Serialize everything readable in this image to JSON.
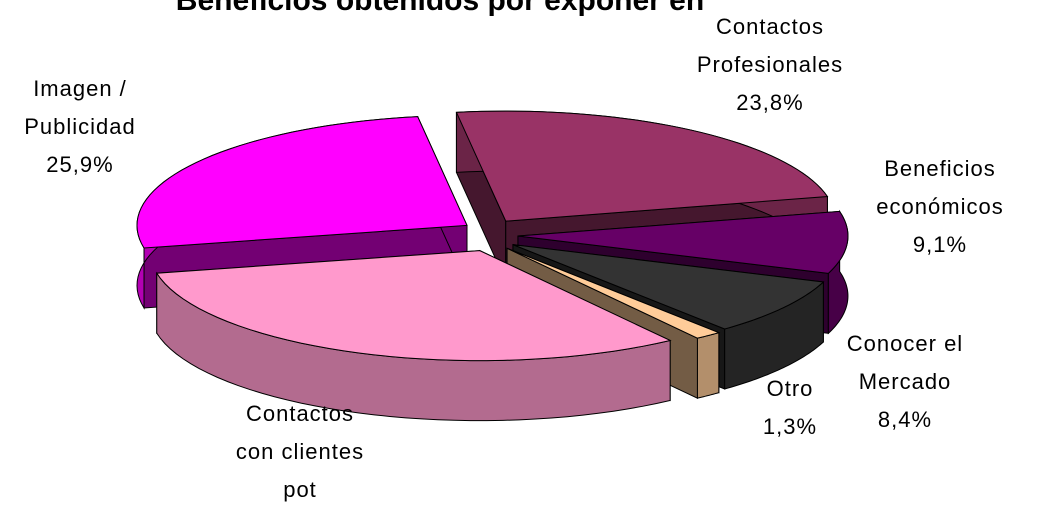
{
  "chart_data": {
    "type": "pie3d",
    "title": "Beneficios obtenidos por exponer en",
    "categories": [
      "Contactos Profesionales",
      "Beneficios económicos",
      "Conocer el Mercado",
      "Otro",
      "Contactos con clientes pot",
      "Imagen / Publicidad"
    ],
    "values": [
      23.8,
      9.1,
      8.4,
      1.3,
      31.5,
      25.9
    ],
    "value_labels": [
      "23,8%",
      "9,1%",
      "8,4%",
      "1,3%",
      null,
      "25,9%"
    ],
    "colors": [
      "#993366",
      "#660066",
      "#333333",
      "#ffcc99",
      "#ff99cc",
      "#ff00ff"
    ]
  }
}
